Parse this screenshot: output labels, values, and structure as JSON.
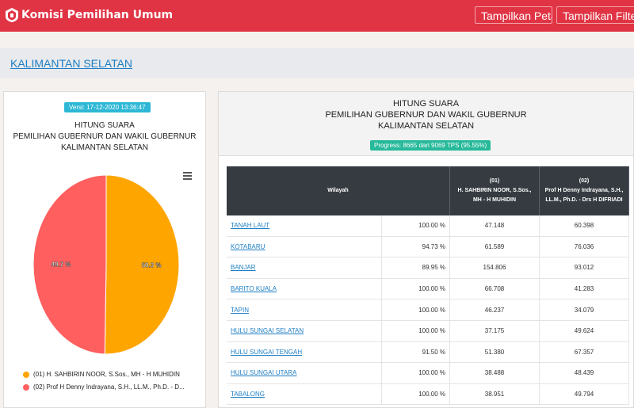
{
  "header": {
    "brand": "Komisi Pemilihan Umum",
    "btn_peta": "Tampilkan Peta",
    "btn_filter": "Tampilkan Filter"
  },
  "breadcrumb": "KALIMANTAN SELATAN",
  "left": {
    "version": "Versi: 17-12-2020 13:36:47",
    "title1": "HITUNG SUARA",
    "title2": "PEMILIHAN GUBERNUR DAN WAKIL GUBERNUR",
    "title3": "KALIMANTAN SELATAN",
    "legend1": "(01) H. SAHBIRIN NOOR, S.Sos., MH - H MUHIDIN",
    "legend2": "(02) Prof H Denny Indrayana, S.H., LL.M., Ph.D. - D..."
  },
  "chart_data": {
    "type": "pie",
    "labels": [
      "(01) H. SAHBIRIN NOOR, S.Sos., MH - H MUHIDIN",
      "(02) Prof H Denny Indrayana, S.H., LL.M., Ph.D. - D..."
    ],
    "values": [
      50.3,
      49.7
    ],
    "value_labels": [
      "50.3 %",
      "49.7 %"
    ],
    "colors": [
      "#ffa500",
      "#ff5f5f"
    ]
  },
  "right": {
    "title1": "HITUNG SUARA",
    "title2": "PEMILIHAN GUBERNUR DAN WAKIL GUBERNUR",
    "title3": "KALIMANTAN SELATAN",
    "progress": "Progress: 8665 dari 9069 TPS (95.55%)"
  },
  "table": {
    "col_wilayah": "Wilayah",
    "col1_no": "(01)",
    "col1_name": "H. SAHBIRIN NOOR, S.Sos., MH - H MUHIDIN",
    "col2_no": "(02)",
    "col2_name": "Prof H Denny Indrayana, S.H., LL.M., Ph.D. - Drs H DIFRIADI",
    "rows": [
      {
        "name": "TANAH LAUT",
        "pct": "100.00 %",
        "v1": "47.148",
        "v2": "60.398"
      },
      {
        "name": "KOTABARU",
        "pct": "94.73 %",
        "v1": "61.589",
        "v2": "76.036"
      },
      {
        "name": "BANJAR",
        "pct": "89.95 %",
        "v1": "154.806",
        "v2": "93.012"
      },
      {
        "name": "BARITO KUALA",
        "pct": "100.00 %",
        "v1": "66.708",
        "v2": "41.283"
      },
      {
        "name": "TAPIN",
        "pct": "100.00 %",
        "v1": "46.237",
        "v2": "34.079"
      },
      {
        "name": "HULU SUNGAI SELATAN",
        "pct": "100.00 %",
        "v1": "37.175",
        "v2": "49.624"
      },
      {
        "name": "HULU SUNGAI TENGAH",
        "pct": "91.50 %",
        "v1": "51.380",
        "v2": "67.357"
      },
      {
        "name": "HULU SUNGAI UTARA",
        "pct": "100.00 %",
        "v1": "38.488",
        "v2": "48.439"
      },
      {
        "name": "TABALONG",
        "pct": "100.00 %",
        "v1": "38.951",
        "v2": "49.794"
      }
    ]
  }
}
